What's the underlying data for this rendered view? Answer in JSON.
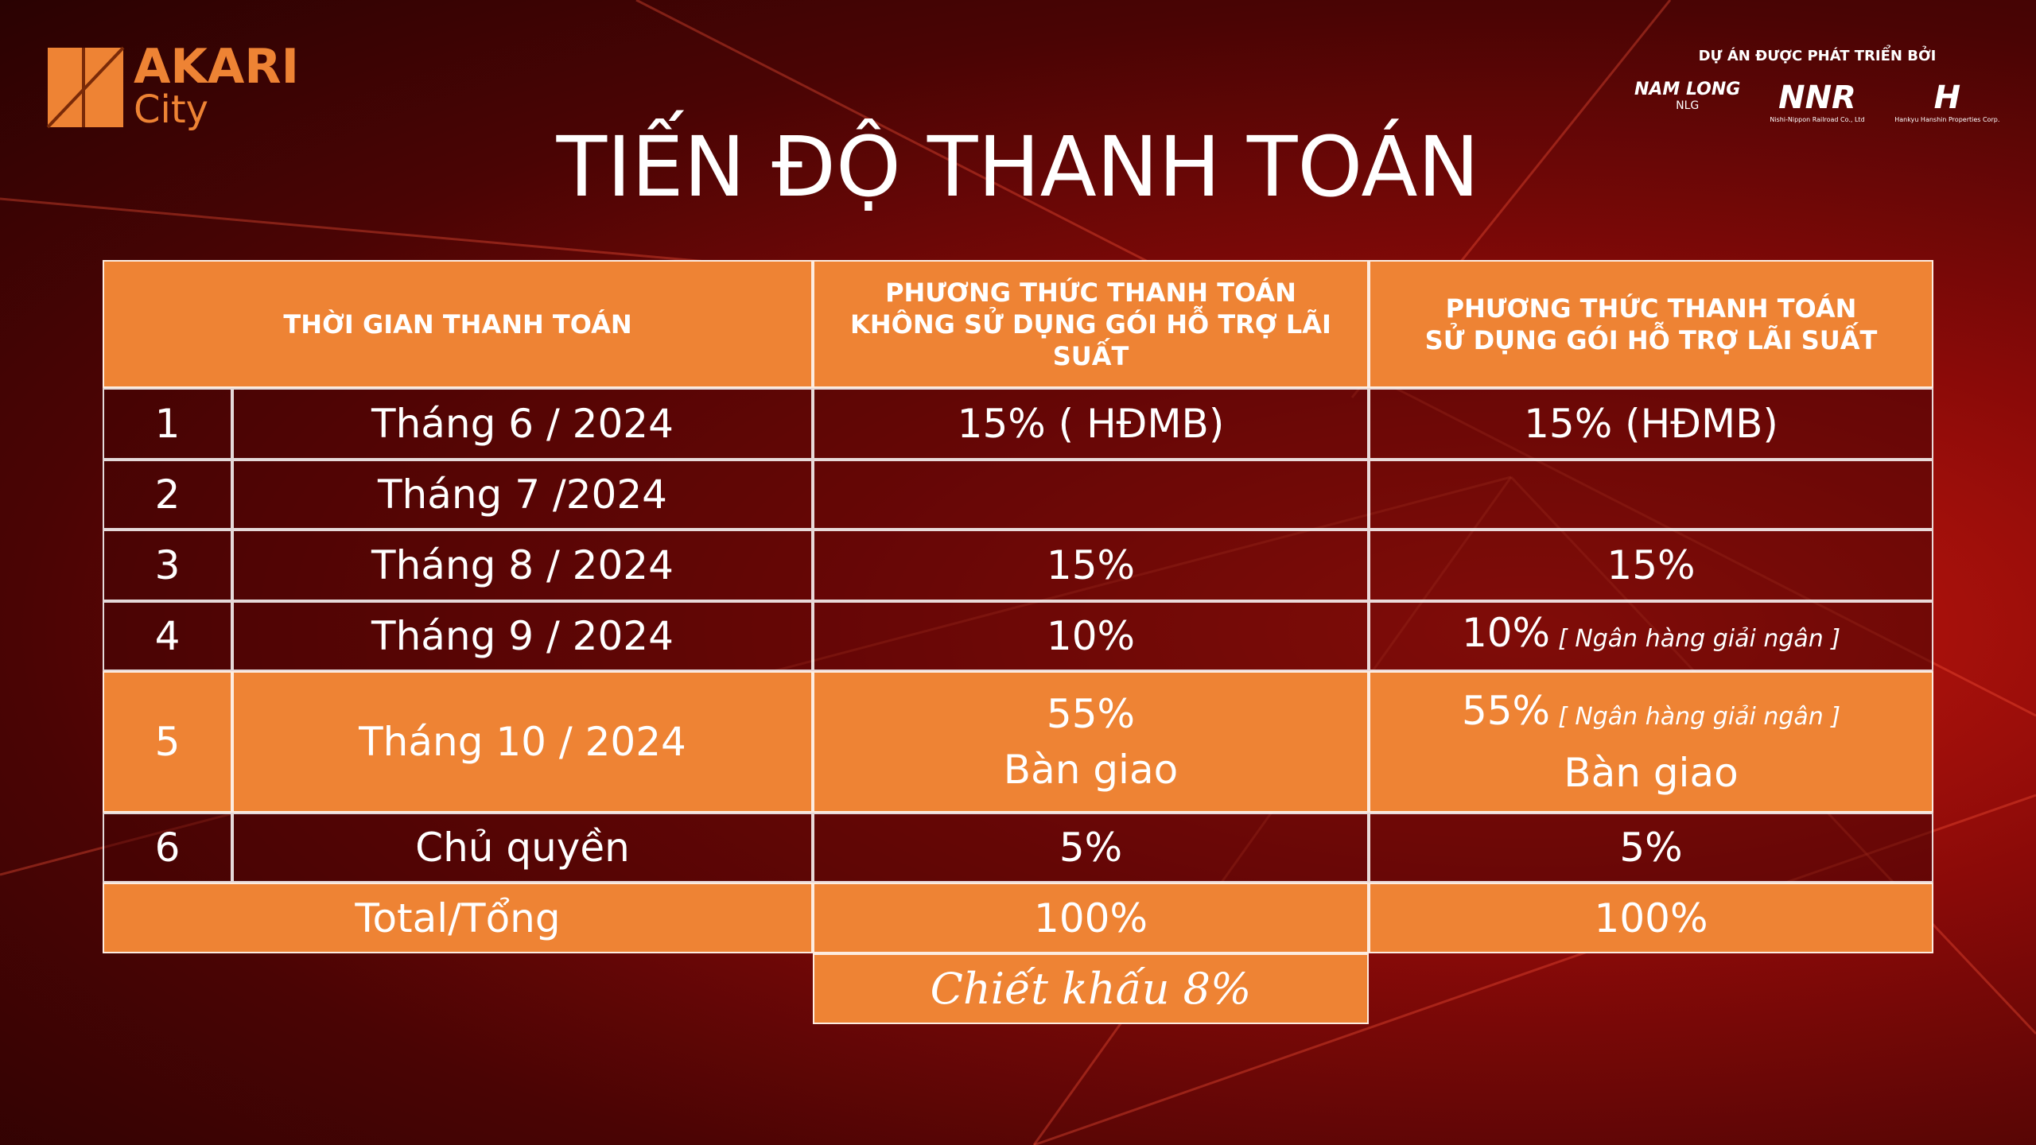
{
  "brand": {
    "name": "AKARI",
    "sub": "City"
  },
  "developers": {
    "caption": "DỰ ÁN ĐƯỢC PHÁT TRIỂN BỞI",
    "items": [
      {
        "name": "NAM LONG",
        "sub": "NLG"
      },
      {
        "name": "NNR",
        "sub": "Nishi-Nippon Railroad Co., Ltd"
      },
      {
        "name": "H",
        "sub": "Hankyu Hanshin Properties Corp."
      }
    ]
  },
  "title": "TIẾN ĐỘ THANH TOÁN",
  "table": {
    "headers": [
      [
        "THỜI GIAN THANH TOÁN"
      ],
      [
        "PHƯƠNG THỨC THANH TOÁN",
        "KHÔNG SỬ DỤNG GÓI HỖ TRỢ LÃI SUẤT"
      ],
      [
        "PHƯƠNG THỨC THANH TOÁN",
        "SỬ DỤNG GÓI HỖ TRỢ LÃI SUẤT"
      ]
    ],
    "rows": [
      {
        "no": "1",
        "time": "Tháng 6 / 2024",
        "a": [
          {
            "text": "15% ( HĐMB)"
          }
        ],
        "b": [
          {
            "text": "15% (HĐMB)"
          }
        ]
      },
      {
        "no": "2",
        "time": "Tháng 7 /2024",
        "a": [],
        "b": []
      },
      {
        "no": "3",
        "time": "Tháng 8 / 2024",
        "a": [
          {
            "text": "15%"
          }
        ],
        "b": [
          {
            "text": "15%"
          }
        ]
      },
      {
        "no": "4",
        "time": "Tháng 9 / 2024",
        "a": [
          {
            "text": "10%"
          }
        ],
        "b": [
          {
            "text": "10%",
            "note": "[ Ngân hàng giải ngân ]"
          }
        ]
      },
      {
        "no": "5",
        "time": "Tháng 10 / 2024",
        "a": [
          {
            "text": "55%"
          },
          {
            "text": "Bàn giao"
          }
        ],
        "b": [
          {
            "text": "55%",
            "note": "[ Ngân hàng giải ngân ]"
          },
          {
            "text": "Bàn giao"
          }
        ]
      },
      {
        "no": "6",
        "time": "Chủ quyền",
        "a": [
          {
            "text": "5%"
          }
        ],
        "b": [
          {
            "text": "5%"
          }
        ]
      }
    ],
    "total": {
      "label": "Total/Tổng",
      "a": "100%",
      "b": "100%"
    },
    "discount": "Chiết khấu 8%"
  }
}
